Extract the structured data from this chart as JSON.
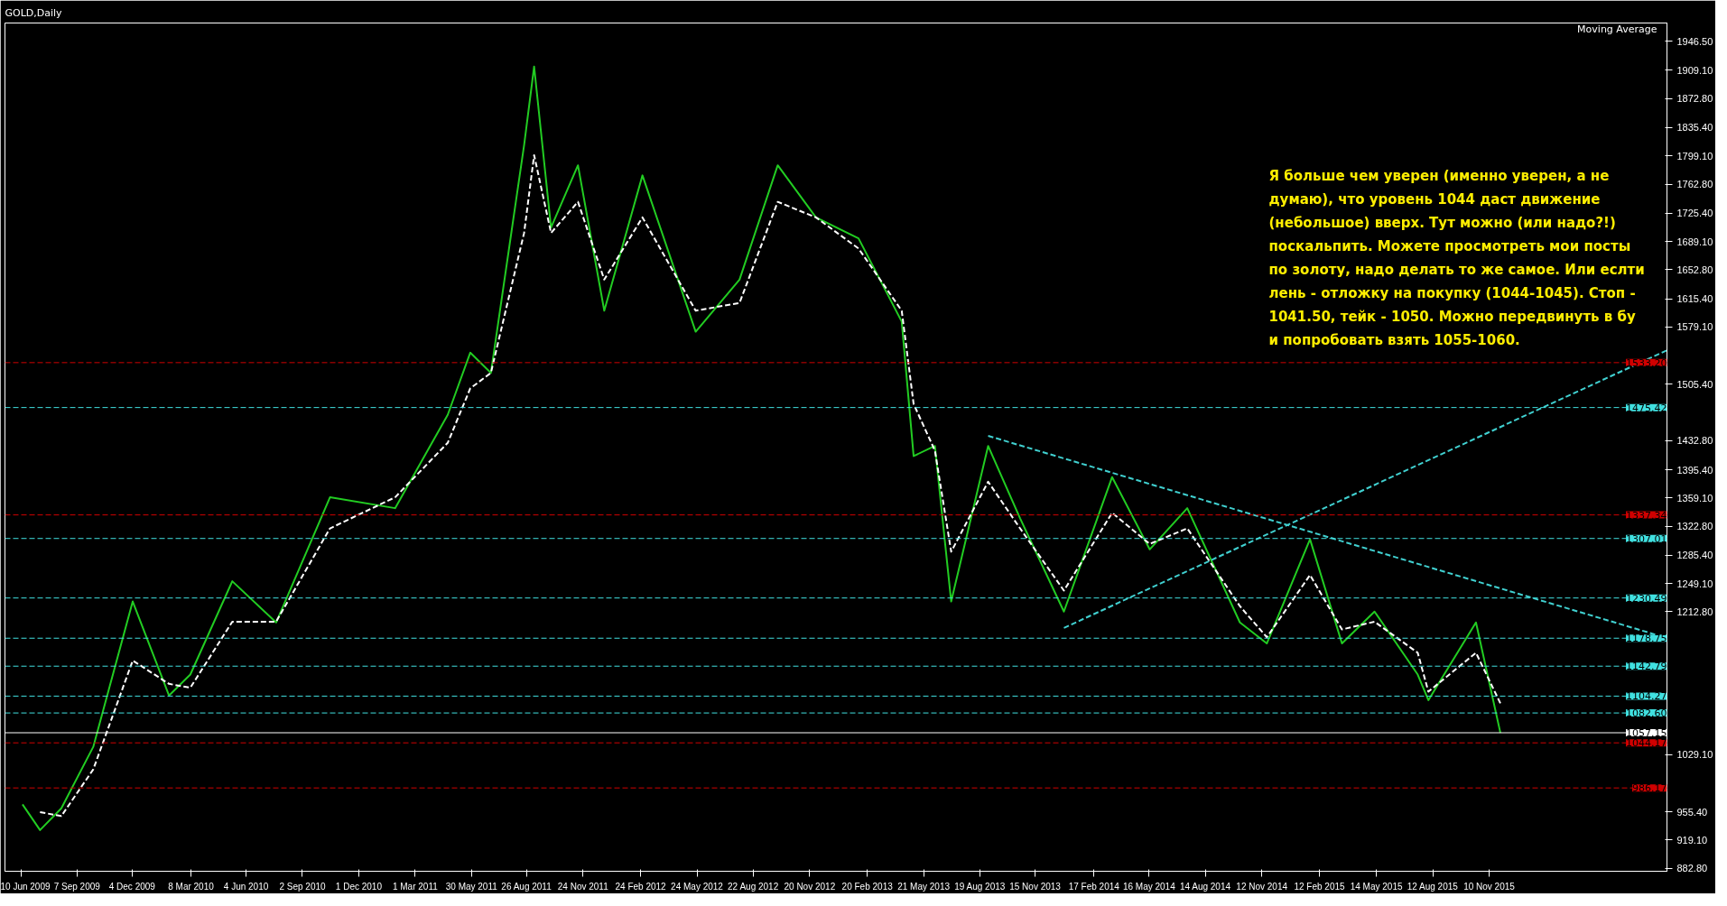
{
  "chart_data": {
    "type": "line",
    "title": "GOLD,Daily",
    "xlim": [
      "2009-05-15",
      "2016-08-20"
    ],
    "ylim": [
      879,
      1970
    ],
    "xticks": [
      {
        "value": "2009-06-10",
        "label": "10 Jun 2009"
      },
      {
        "value": "2009-09-07",
        "label": "7 Sep 2009"
      },
      {
        "value": "2009-12-04",
        "label": "4 Dec 2009"
      },
      {
        "value": "2010-03-08",
        "label": "8 Mar 2010"
      },
      {
        "value": "2010-06-04",
        "label": "4 Jun 2010"
      },
      {
        "value": "2010-09-02",
        "label": "2 Sep 2010"
      },
      {
        "value": "2010-12-01",
        "label": "1 Dec 2010"
      },
      {
        "value": "2011-03-01",
        "label": "1 Mar 2011"
      },
      {
        "value": "2011-05-30",
        "label": "30 May 2011"
      },
      {
        "value": "2011-08-26",
        "label": "26 Aug 2011"
      },
      {
        "value": "2011-11-24",
        "label": "24 Nov 2011"
      },
      {
        "value": "2012-02-24",
        "label": "24 Feb 2012"
      },
      {
        "value": "2012-05-24",
        "label": "24 May 2012"
      },
      {
        "value": "2012-08-22",
        "label": "22 Aug 2012"
      },
      {
        "value": "2012-11-20",
        "label": "20 Nov 2012"
      },
      {
        "value": "2013-02-20",
        "label": "20 Feb 2013"
      },
      {
        "value": "2013-05-21",
        "label": "21 May 2013"
      },
      {
        "value": "2013-08-19",
        "label": "19 Aug 2013"
      },
      {
        "value": "2013-11-15",
        "label": "15 Nov 2013"
      },
      {
        "value": "2014-02-17",
        "label": "17 Feb 2014"
      },
      {
        "value": "2014-05-16",
        "label": "16 May 2014"
      },
      {
        "value": "2014-08-14",
        "label": "14 Aug 2014"
      },
      {
        "value": "2014-11-12",
        "label": "12 Nov 2014"
      },
      {
        "value": "2015-02-12",
        "label": "12 Feb 2015"
      },
      {
        "value": "2015-05-14",
        "label": "14 May 2015"
      },
      {
        "value": "2015-08-12",
        "label": "12 Aug 2015"
      },
      {
        "value": "2015-11-10",
        "label": "10 Nov 2015"
      }
    ],
    "yticks": [
      {
        "value": 1946.5,
        "label": "1946.50"
      },
      {
        "value": 1909.1,
        "label": "1909.10"
      },
      {
        "value": 1872.8,
        "label": "1872.80"
      },
      {
        "value": 1835.4,
        "label": "1835.40"
      },
      {
        "value": 1799.1,
        "label": "1799.10"
      },
      {
        "value": 1762.8,
        "label": "1762.80"
      },
      {
        "value": 1725.4,
        "label": "1725.40"
      },
      {
        "value": 1689.1,
        "label": "1689.10"
      },
      {
        "value": 1652.8,
        "label": "1652.80"
      },
      {
        "value": 1615.4,
        "label": "1615.40"
      },
      {
        "value": 1579.1,
        "label": "1579.10"
      },
      {
        "value": 1505.4,
        "label": "1505.40"
      },
      {
        "value": 1432.8,
        "label": "1432.80"
      },
      {
        "value": 1395.4,
        "label": "1395.40"
      },
      {
        "value": 1359.1,
        "label": "1359.10"
      },
      {
        "value": 1322.8,
        "label": "1322.80"
      },
      {
        "value": 1285.4,
        "label": "1285.40"
      },
      {
        "value": 1249.1,
        "label": "1249.10"
      },
      {
        "value": 1212.8,
        "label": "1212.80"
      },
      {
        "value": 1029.1,
        "label": "1029.10"
      },
      {
        "value": 955.4,
        "label": "955.40"
      },
      {
        "value": 919.1,
        "label": "919.10"
      },
      {
        "value": 882.8,
        "label": "882.80"
      }
    ],
    "grid": false,
    "series": [
      {
        "color": "#22cc22",
        "line_style": "solid",
        "x": [
          "2009-06-12",
          "2009-07-10",
          "2009-08-13",
          "2009-10-03",
          "2009-12-05",
          "2010-02-01",
          "2010-03-07",
          "2010-05-13",
          "2010-07-22",
          "2010-10-16",
          "2011-01-28",
          "2011-04-22",
          "2011-05-28",
          "2011-06-30",
          "2011-08-22",
          "2011-09-07",
          "2011-10-04",
          "2011-11-16",
          "2011-12-28",
          "2012-02-27",
          "2012-05-22",
          "2012-07-31",
          "2012-09-30",
          "2012-11-30",
          "2013-02-06",
          "2013-04-16",
          "2013-05-05",
          "2013-06-08",
          "2013-07-04",
          "2013-09-01",
          "2013-10-22",
          "2013-12-31",
          "2014-03-18",
          "2014-05-17",
          "2014-07-16",
          "2014-10-08",
          "2014-11-20",
          "2015-01-28",
          "2015-03-20",
          "2015-05-11",
          "2015-07-19",
          "2015-08-05",
          "2015-10-20",
          "2015-11-28"
        ],
        "values": [
          965,
          932,
          960,
          1039,
          1226,
          1105,
          1132,
          1252,
          1199,
          1360,
          1346,
          1466,
          1546,
          1520,
          1813,
          1914,
          1707,
          1787,
          1600,
          1774,
          1573,
          1640,
          1787,
          1720,
          1693,
          1586,
          1413,
          1426,
          1226,
          1426,
          1333,
          1213,
          1386,
          1293,
          1346,
          1199,
          1172,
          1306,
          1172,
          1213,
          1132,
          1099,
          1199,
          1057
        ]
      },
      {
        "color": "#ffffff",
        "line_style": "dashed",
        "x": [
          "2009-07-10",
          "2009-08-13",
          "2009-10-03",
          "2009-12-05",
          "2010-02-01",
          "2010-03-07",
          "2010-05-13",
          "2010-07-22",
          "2010-10-16",
          "2011-01-28",
          "2011-04-22",
          "2011-05-28",
          "2011-06-30",
          "2011-08-22",
          "2011-09-07",
          "2011-10-04",
          "2011-11-16",
          "2011-12-28",
          "2012-02-27",
          "2012-05-22",
          "2012-07-31",
          "2012-09-30",
          "2012-11-30",
          "2013-02-06",
          "2013-04-16",
          "2013-05-05",
          "2013-06-08",
          "2013-07-04",
          "2013-09-01",
          "2013-10-22",
          "2013-12-31",
          "2014-03-18",
          "2014-05-17",
          "2014-07-16",
          "2014-10-08",
          "2014-11-20",
          "2015-01-28",
          "2015-03-20",
          "2015-05-11",
          "2015-07-19",
          "2015-08-05",
          "2015-10-20",
          "2015-11-28"
        ],
        "values": [
          955,
          950,
          1010,
          1150,
          1120,
          1115,
          1200,
          1200,
          1320,
          1360,
          1430,
          1500,
          1520,
          1700,
          1800,
          1700,
          1740,
          1640,
          1720,
          1600,
          1610,
          1740,
          1720,
          1680,
          1600,
          1480,
          1420,
          1290,
          1380,
          1320,
          1240,
          1340,
          1300,
          1320,
          1220,
          1180,
          1260,
          1190,
          1200,
          1160,
          1110,
          1160,
          1095
        ]
      },
      {
        "color": "#40d0d0",
        "line_style": "dashed",
        "x": [
          "2013-09-01",
          "2016-08-20"
        ],
        "values": [
          1439,
          1179
        ]
      },
      {
        "color": "#40d0d0",
        "line_style": "dashed",
        "x": [
          "2013-12-31",
          "2016-08-20"
        ],
        "values": [
          1192,
          1549
        ]
      }
    ],
    "ref_lines": [
      {
        "axis": "y",
        "value": 1533.2,
        "label": "1533.20",
        "color": "#d00000",
        "line_style": "dashed"
      },
      {
        "axis": "y",
        "value": 1475.42,
        "label": "1475.42",
        "color": "#40e0e0",
        "line_style": "dashed"
      },
      {
        "axis": "y",
        "value": 1337.34,
        "label": "1337.34",
        "color": "#d00000",
        "line_style": "dashed"
      },
      {
        "axis": "y",
        "value": 1307.01,
        "label": "1307.01",
        "color": "#40e0e0",
        "line_style": "dashed"
      },
      {
        "axis": "y",
        "value": 1230.49,
        "label": "1230.49",
        "color": "#40e0e0",
        "line_style": "dashed"
      },
      {
        "axis": "y",
        "value": 1178.75,
        "label": "1178.75",
        "color": "#40e0e0",
        "line_style": "dashed"
      },
      {
        "axis": "y",
        "value": 1142.79,
        "label": "1142.79",
        "color": "#40e0e0",
        "line_style": "dashed"
      },
      {
        "axis": "y",
        "value": 1104.27,
        "label": "1104.27",
        "color": "#40e0e0",
        "line_style": "dashed"
      },
      {
        "axis": "y",
        "value": 1082.6,
        "label": "1082.60",
        "color": "#40e0e0",
        "line_style": "dashed"
      },
      {
        "axis": "y",
        "value": 1057.15,
        "label": "1057.15",
        "color": "#ffffff",
        "line_style": "solid"
      },
      {
        "axis": "y",
        "value": 1044.17,
        "label": "1044.17",
        "color": "#d00000",
        "line_style": "dashed"
      },
      {
        "axis": "y",
        "value": 986.17,
        "label": "986.17",
        "color": "#d00000",
        "line_style": "dashed"
      }
    ],
    "annotations": [
      "Я больше чем уверен (именно уверен, а не\nдумаю), что уровень 1044 даст движение\n(небольшое) вверх. Тут можно (или надо?!)\nпоскальпить. Можете просмотреть мои посты\nпо золоту, надо делать то же самое. Или еслти\nлень - отложку на покупку (1044-1045). Стоп -\n1041.50, тейк - 1050. Можно передвинуть в бу\nи попробовать взять 1055-1060.",
      "Moving Average"
    ]
  }
}
